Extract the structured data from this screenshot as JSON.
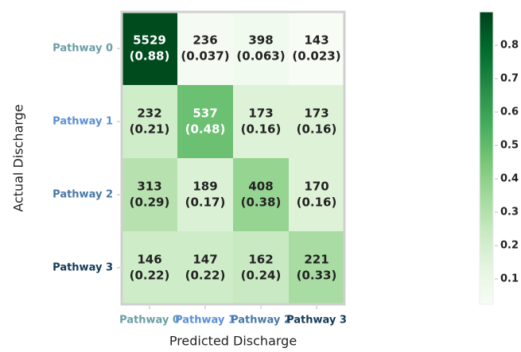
{
  "chart_data": {
    "type": "heatmap",
    "x_label": "Predicted Discharge",
    "y_label": "Actual Discharge",
    "x_categories": [
      "Pathway 0",
      "Pathway 1",
      "Pathway 2",
      "Pathway 3"
    ],
    "y_categories": [
      "Pathway 0",
      "Pathway 1",
      "Pathway 2",
      "Pathway 3"
    ],
    "label_colors": [
      "#6b9ea6",
      "#5a8fd8",
      "#4978a6",
      "#133b58"
    ],
    "counts": [
      [
        5529,
        236,
        398,
        143
      ],
      [
        232,
        537,
        173,
        173
      ],
      [
        313,
        189,
        408,
        170
      ],
      [
        146,
        147,
        162,
        221
      ]
    ],
    "values": [
      [
        0.88,
        0.037,
        0.063,
        0.023
      ],
      [
        0.21,
        0.48,
        0.16,
        0.16
      ],
      [
        0.29,
        0.17,
        0.38,
        0.16
      ],
      [
        0.22,
        0.22,
        0.24,
        0.33
      ]
    ],
    "value_labels": [
      [
        "(0.88)",
        "(0.037)",
        "(0.063)",
        "(0.023)"
      ],
      [
        "(0.21)",
        "(0.48)",
        "(0.16)",
        "(0.16)"
      ],
      [
        "(0.29)",
        "(0.17)",
        "(0.38)",
        "(0.16)"
      ],
      [
        "(0.22)",
        "(0.22)",
        "(0.24)",
        "(0.33)"
      ]
    ],
    "colors": [
      "#f7fcf5",
      "#e5f5e0",
      "#c7e9c0",
      "#a1d99b",
      "#74c476",
      "#41ab5d",
      "#238b45",
      "#006d2c",
      "#00441b"
    ],
    "zlim": [
      0.024,
      0.9
    ],
    "zticks": [
      0.1,
      0.2,
      0.3,
      0.4,
      0.5,
      0.6,
      0.7,
      0.8
    ]
  }
}
